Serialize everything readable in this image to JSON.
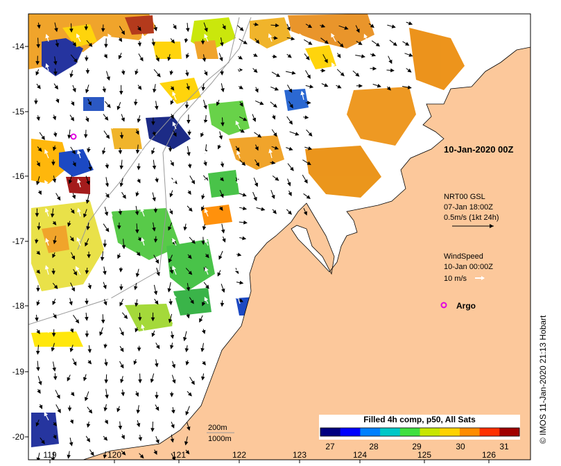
{
  "map": {
    "date_label": "10-Jan-2020 00Z",
    "x_ticks": [
      "119",
      "120",
      "121",
      "122",
      "123",
      "124",
      "125",
      "126"
    ],
    "y_ticks": [
      "-14",
      "-15",
      "-16",
      "-17",
      "-18",
      "-19",
      "-20"
    ],
    "legend_nrt": {
      "line1": "NRT00 GSL",
      "line2": "07-Jan 18:00Z",
      "line3": "0.5m/s (1kt 24h)"
    },
    "legend_wind": {
      "line1": "WindSpeed",
      "line2": "10-Jan 00:00Z",
      "line3": "10 m/s"
    },
    "legend_argo": "Argo",
    "depth_labels": [
      "200m",
      "1000m"
    ],
    "colorbar": {
      "title": "Filled 4h comp, p50, All Sats",
      "ticks": [
        "27",
        "28",
        "29",
        "30",
        "31"
      ],
      "colors": [
        "#00007f",
        "#0000ff",
        "#0080ff",
        "#00c8c8",
        "#40e040",
        "#c8e600",
        "#ffd200",
        "#ff8c00",
        "#ff3000",
        "#a00000"
      ]
    },
    "credit": "© IMOS 11-Jan-2020 21:13 Hobart",
    "colors": {
      "land": "#fcc89b",
      "argo": "#e000e0",
      "wind_arrow": "#ffffff",
      "frame": "#000000",
      "isobath": "#999999"
    }
  }
}
